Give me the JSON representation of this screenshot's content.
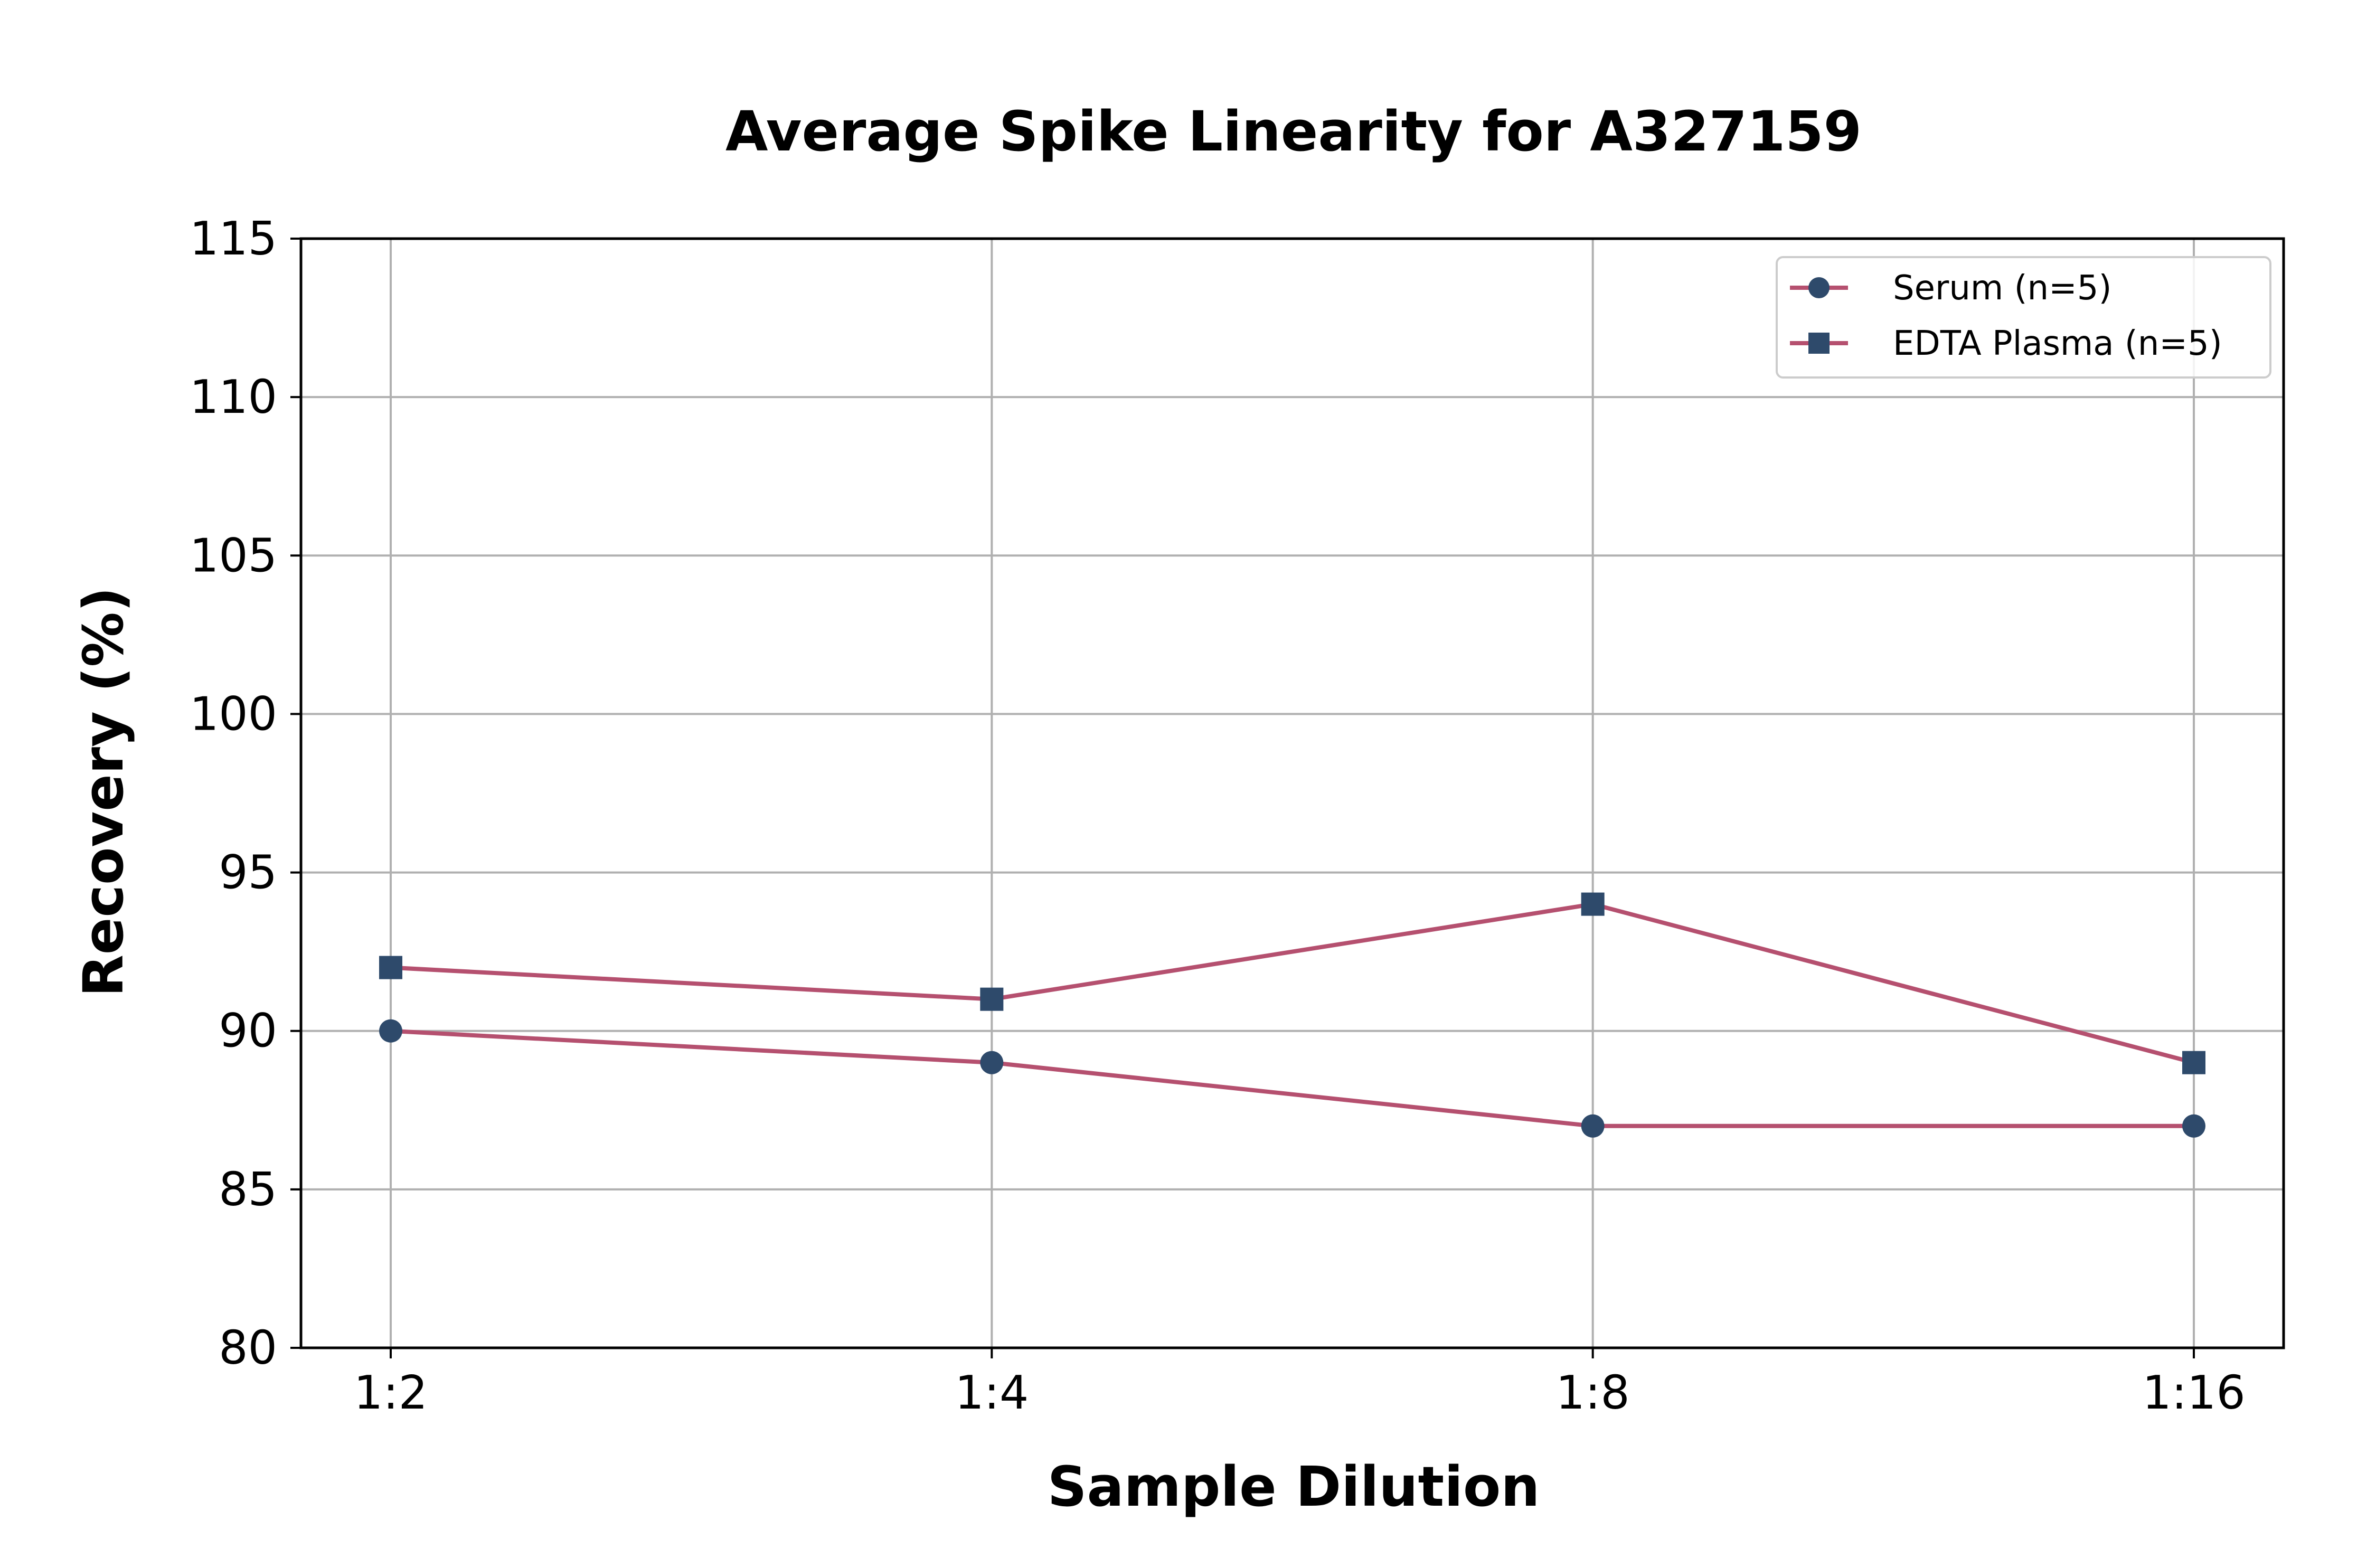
{
  "chart_data": {
    "type": "line",
    "title": "Average Spike Linearity for A327159",
    "xlabel": "Sample Dilution",
    "ylabel": "Recovery (%)",
    "categories": [
      "1:2",
      "1:4",
      "1:8",
      "1:16"
    ],
    "ylim": [
      80,
      115
    ],
    "yticks": [
      80,
      85,
      90,
      95,
      100,
      105,
      110,
      115
    ],
    "grid": true,
    "legend_position": "top-right",
    "line_color": "#b5506f",
    "marker_color": "#2e4a6b",
    "series": [
      {
        "name": "Serum (n=5)",
        "marker": "circle",
        "values": [
          90,
          89,
          87,
          87
        ]
      },
      {
        "name": "EDTA Plasma (n=5)",
        "marker": "square",
        "values": [
          92,
          91,
          94,
          89
        ]
      }
    ]
  }
}
